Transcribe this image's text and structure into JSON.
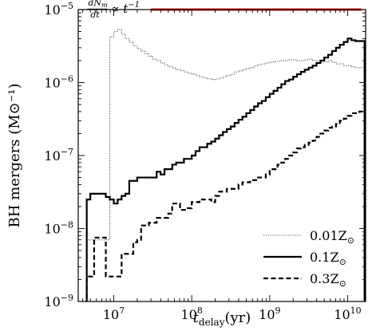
{
  "chart_data": {
    "type": "line",
    "xlabel_main": "t",
    "xlabel_sub": "delay",
    "xlabel_unit": "(yr)",
    "ylabel": "BH mergers (M⊙⁻¹)",
    "x_scale": "log",
    "y_scale": "log",
    "xlim": [
      3500000,
      17000000000
    ],
    "ylim": [
      1e-09,
      1e-05
    ],
    "x_ticks": [
      10000000,
      100000000,
      1000000000,
      10000000000
    ],
    "x_tick_labels": [
      {
        "base": "10",
        "exp": "7"
      },
      {
        "base": "10",
        "exp": "8"
      },
      {
        "base": "10",
        "exp": "9"
      },
      {
        "base": "10",
        "exp": "10"
      }
    ],
    "y_ticks": [
      1e-09,
      1e-08,
      1e-07,
      1e-06,
      1e-05
    ],
    "y_tick_labels": [
      {
        "base": "10",
        "exp": "−9"
      },
      {
        "base": "10",
        "exp": "−8"
      },
      {
        "base": "10",
        "exp": "−7"
      },
      {
        "base": "10",
        "exp": "−6"
      },
      {
        "base": "10",
        "exp": "−5"
      }
    ],
    "grid": false,
    "legend_position": "lower-right",
    "annotation": {
      "text": "dN_m/dt ∝ t^−1",
      "num": "dN",
      "num_sub": "m",
      "den": "dt",
      "rel": "∝ t",
      "exp": "−1",
      "x_data": 3700000,
      "y_data": 1.02e-05
    },
    "reference_line": {
      "color": "#e8211b",
      "x": [
        30000000,
        15000000000
      ],
      "y": [
        1e-05,
        1e-05
      ]
    },
    "series": [
      {
        "name": "0.01Z⊙",
        "label_main": "0.01Z",
        "style": "dotted",
        "color": "#555555",
        "width": 1.1,
        "x": [
          4500000,
          5000000,
          5600000,
          6300000,
          7100000,
          7900000,
          8900000,
          10000000,
          11200000,
          12600000,
          14100000,
          15800000,
          17800000,
          20000000,
          22400000,
          25100000,
          28200000,
          31600000,
          35500000,
          39800000,
          44700000,
          50100000,
          56200000,
          63100000,
          70800000,
          79400000,
          89100000,
          100000000,
          112000000,
          126000000,
          141000000,
          158000000,
          178000000,
          200000000,
          224000000,
          251000000,
          282000000,
          316000000,
          355000000,
          398000000,
          447000000,
          501000000,
          562000000,
          631000000,
          708000000,
          794000000,
          891000000,
          1000000000,
          1120000000,
          1260000000,
          1410000000,
          1580000000,
          1780000000,
          2000000000,
          2240000000,
          2510000000,
          2820000000,
          3160000000,
          3550000000,
          3980000000,
          4470000000,
          5010000000,
          5620000000,
          6310000000,
          7080000000,
          7940000000,
          8910000000,
          10000000000,
          11200000000,
          12600000000,
          14100000000,
          15000000000
        ],
        "y": [
          7e-09,
          7e-09,
          7e-09,
          7e-09,
          7e-09,
          7e-09,
          4.2e-06,
          5e-06,
          5.3e-06,
          4.6e-06,
          4e-06,
          3.6e-06,
          3.2e-06,
          2.9e-06,
          2.7e-06,
          2.5e-06,
          2.3e-06,
          2.1e-06,
          2e-06,
          1.85e-06,
          1.75e-06,
          1.65e-06,
          1.58e-06,
          1.5e-06,
          1.45e-06,
          1.4e-06,
          1.35e-06,
          1.3e-06,
          1.25e-06,
          1.2e-06,
          1.17e-06,
          1.13e-06,
          1.1e-06,
          1.12e-06,
          1.15e-06,
          1.2e-06,
          1.25e-06,
          1.3e-06,
          1.4e-06,
          1.45e-06,
          1.5e-06,
          1.55e-06,
          1.6e-06,
          1.7e-06,
          1.75e-06,
          1.8e-06,
          1.85e-06,
          1.9e-06,
          1.95e-06,
          1.95e-06,
          2e-06,
          2e-06,
          2.05e-06,
          2.05e-06,
          2e-06,
          2e-06,
          2.05e-06,
          2.1e-06,
          2e-06,
          1.95e-06,
          1.9e-06,
          1.9e-06,
          2e-06,
          1.9e-06,
          1.8e-06,
          1.8e-06,
          1.7e-06,
          1.7e-06,
          1.65e-06,
          1.6e-06,
          1.6e-06,
          1.6e-06
        ]
      },
      {
        "name": "0.1Z⊙",
        "label_main": "0.1Z",
        "style": "solid",
        "color": "#000000",
        "width": 2.2,
        "x": [
          4500000,
          5000000,
          5600000,
          6300000,
          7100000,
          7900000,
          8900000,
          10000000,
          11200000,
          12600000,
          14100000,
          15800000,
          17800000,
          20000000,
          22400000,
          25100000,
          28200000,
          31600000,
          35500000,
          39800000,
          44700000,
          50100000,
          56200000,
          63100000,
          70800000,
          79400000,
          89100000,
          100000000,
          112000000,
          126000000,
          141000000,
          158000000,
          178000000,
          200000000,
          224000000,
          251000000,
          282000000,
          316000000,
          355000000,
          398000000,
          447000000,
          501000000,
          562000000,
          631000000,
          708000000,
          794000000,
          891000000,
          1000000000,
          1120000000,
          1260000000,
          1410000000,
          1580000000,
          1780000000,
          2000000000,
          2240000000,
          2510000000,
          2820000000,
          3160000000,
          3550000000,
          3980000000,
          4470000000,
          5010000000,
          5620000000,
          6310000000,
          7080000000,
          7940000000,
          8910000000,
          10000000000,
          11200000000,
          12600000000,
          14100000000,
          15000000000
        ],
        "y": [
          2.5e-08,
          3e-08,
          3e-08,
          3e-08,
          3e-08,
          2.7e-08,
          2.5e-08,
          2.2e-08,
          2.5e-08,
          2.8e-08,
          3e-08,
          4.5e-08,
          4.5e-08,
          5e-08,
          5e-08,
          5e-08,
          5e-08,
          5e-08,
          6e-08,
          5.5e-08,
          6.5e-08,
          6.5e-08,
          7.5e-08,
          8e-08,
          8e-08,
          9e-08,
          9e-08,
          1e-07,
          1.15e-07,
          1.3e-07,
          1.3e-07,
          1.45e-07,
          1.55e-07,
          1.7e-07,
          1.9e-07,
          2.1e-07,
          2.3e-07,
          2.5e-07,
          2.8e-07,
          3.1e-07,
          3.4e-07,
          3.8e-07,
          4.2e-07,
          4.7e-07,
          5.2e-07,
          5.6e-07,
          6.3e-07,
          7e-07,
          7.7e-07,
          8.5e-07,
          9.5e-07,
          1.05e-06,
          1.1e-06,
          1.2e-06,
          1.3e-06,
          1.4e-06,
          1.5e-06,
          1.6e-06,
          1.7e-06,
          1.85e-06,
          2e-06,
          2.2e-06,
          2.4e-06,
          2.7e-06,
          3e-06,
          3.3e-06,
          3.6e-06,
          4e-06,
          3.8e-06,
          3.7e-06,
          3.7e-06,
          3.7e-06
        ]
      },
      {
        "name": "0.3Z⊙",
        "label_main": "0.3Z",
        "style": "dashed",
        "color": "#000000",
        "width": 2.2,
        "x": [
          4500000,
          5000000,
          5600000,
          6300000,
          7100000,
          7900000,
          8900000,
          10000000,
          11200000,
          12600000,
          14100000,
          15800000,
          17800000,
          20000000,
          22400000,
          25100000,
          28200000,
          31600000,
          35500000,
          39800000,
          44700000,
          50100000,
          56200000,
          63100000,
          70800000,
          79400000,
          89100000,
          100000000,
          112000000,
          126000000,
          141000000,
          158000000,
          178000000,
          200000000,
          224000000,
          251000000,
          282000000,
          316000000,
          355000000,
          398000000,
          447000000,
          501000000,
          562000000,
          631000000,
          708000000,
          794000000,
          891000000,
          1000000000,
          1120000000,
          1260000000,
          1410000000,
          1580000000,
          1780000000,
          2000000000,
          2240000000,
          2510000000,
          2820000000,
          3160000000,
          3550000000,
          3980000000,
          4470000000,
          5010000000,
          5620000000,
          6310000000,
          7080000000,
          7940000000,
          8910000000,
          10000000000,
          11200000000,
          12600000000,
          14100000000,
          15000000000
        ],
        "y": [
          2.2e-09,
          2.2e-09,
          7.5e-09,
          7.5e-09,
          7.5e-09,
          2.2e-09,
          2.2e-09,
          2.2e-09,
          2.2e-09,
          4.5e-09,
          4.5e-09,
          4.5e-09,
          6.5e-09,
          7e-09,
          1.1e-08,
          1.1e-08,
          1.2e-08,
          1.2e-08,
          1.4e-08,
          1.4e-08,
          1.4e-08,
          1.6e-08,
          2.2e-08,
          2.2e-08,
          1.8e-08,
          1.8e-08,
          1.9e-08,
          2.3e-08,
          2.3e-08,
          2.5e-08,
          2.5e-08,
          2.5e-08,
          2.3e-08,
          2.8e-08,
          3.2e-08,
          3.2e-08,
          3.5e-08,
          3.5e-08,
          3.5e-08,
          4e-08,
          4.3e-08,
          4.3e-08,
          4.6e-08,
          4.6e-08,
          5e-08,
          5e-08,
          5.5e-08,
          6.5e-08,
          6.5e-08,
          7.5e-08,
          8e-08,
          9e-08,
          1e-07,
          1.1e-07,
          1.25e-07,
          1.3e-07,
          1.4e-07,
          1.5e-07,
          1.6e-07,
          1.8e-07,
          2e-07,
          2.2e-07,
          2.4e-07,
          2.5e-07,
          2.7e-07,
          3e-07,
          3.2e-07,
          3.5e-07,
          3.8e-07,
          3.8e-07,
          4e-07,
          4e-07
        ]
      }
    ]
  }
}
